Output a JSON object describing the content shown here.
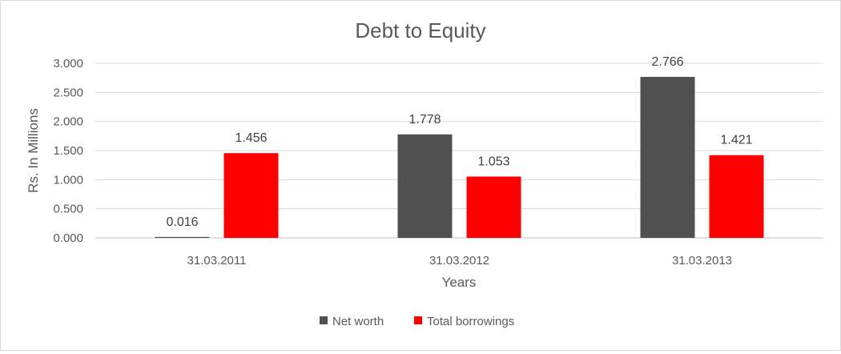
{
  "chart_data": {
    "type": "bar",
    "title": "Debt to Equity",
    "xlabel": "Years",
    "ylabel": "Rs. In Millions",
    "categories": [
      "31.03.2011",
      "31.03.2012",
      "31.03.2013"
    ],
    "series": [
      {
        "name": "Net worth",
        "color": "#505050",
        "values": [
          0.016,
          1.778,
          2.766
        ],
        "labels": [
          "0.016",
          "1.778",
          "2.766"
        ]
      },
      {
        "name": "Total borrowings",
        "color": "#ff0000",
        "values": [
          1.456,
          1.053,
          1.421
        ],
        "labels": [
          "1.456",
          "1.053",
          "1.421"
        ]
      }
    ],
    "ylim": [
      0,
      3
    ],
    "yticks": [
      0,
      0.5,
      1,
      1.5,
      2,
      2.5,
      3
    ],
    "ytick_labels": [
      "0.000",
      "0.500",
      "1.000",
      "1.500",
      "2.000",
      "2.500",
      "3.000"
    ],
    "grid": true,
    "legend_position": "bottom"
  }
}
